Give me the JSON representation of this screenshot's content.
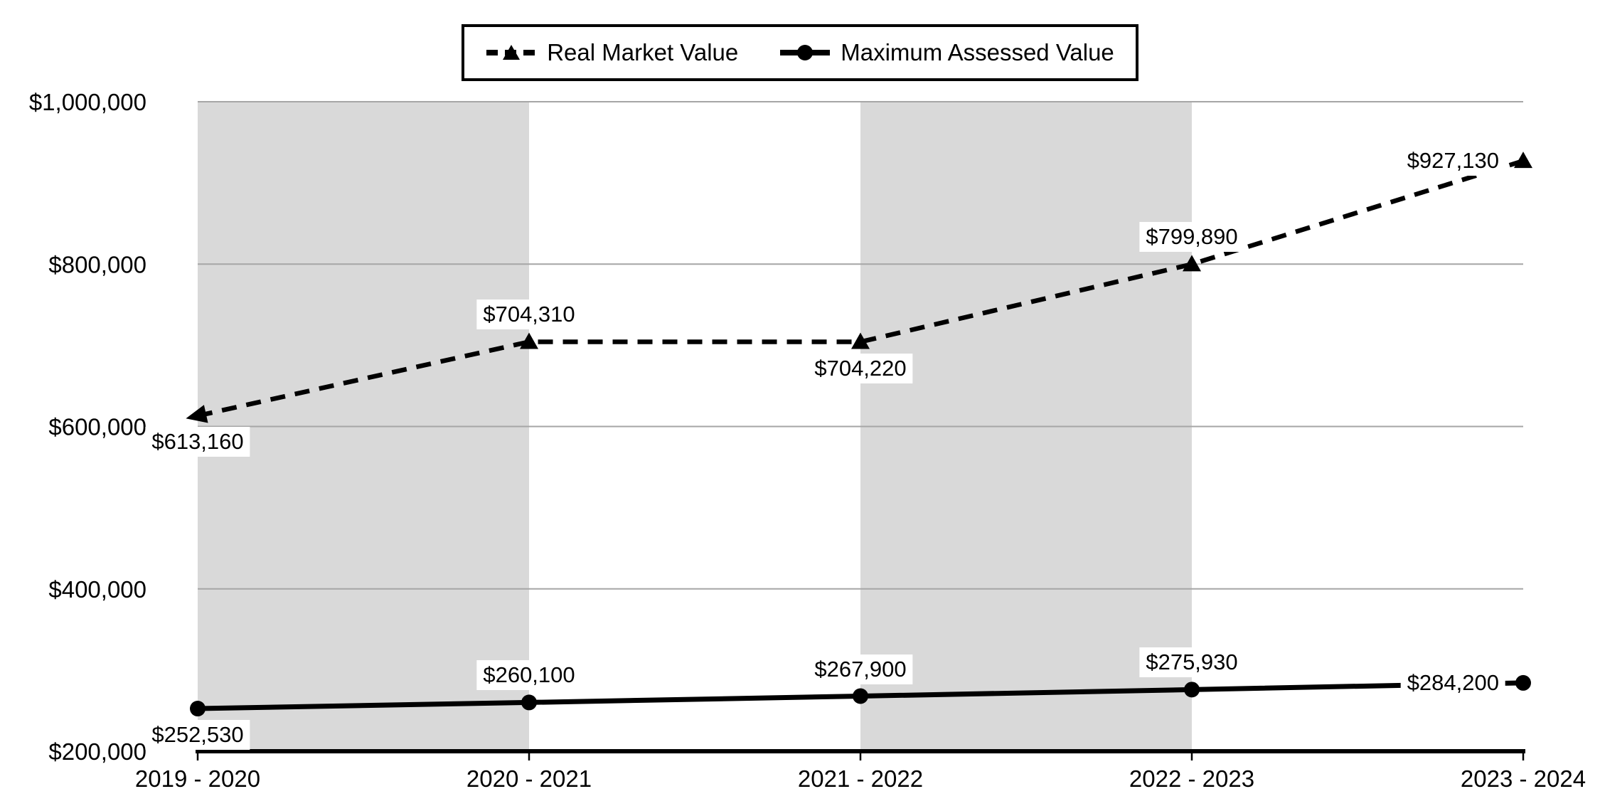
{
  "chart_data": {
    "type": "line",
    "title": "",
    "xlabel": "",
    "ylabel": "",
    "categories": [
      "2019 - 2020",
      "2020 - 2021",
      "2021 - 2022",
      "2022 - 2023",
      "2023 - 2024"
    ],
    "ylim": [
      200000,
      1000000
    ],
    "grid": true,
    "legend_position": "top-center",
    "y_ticks": [
      {
        "label": "$1,000,000",
        "value": 1000000
      },
      {
        "label": "$800,000",
        "value": 800000
      },
      {
        "label": "$600,000",
        "value": 600000
      },
      {
        "label": "$400,000",
        "value": 400000
      },
      {
        "label": "$200,000",
        "value": 200000
      }
    ],
    "band_indices": [
      0,
      2
    ],
    "series": [
      {
        "name": "Real Market Value",
        "style": "dashed",
        "marker": "triangle",
        "markers": [
          "arrow",
          "triangle",
          "triangle",
          "triangle",
          "triangle"
        ],
        "values": [
          613160,
          704310,
          704220,
          799890,
          927130
        ],
        "labels": [
          "$613,160",
          "$704,310",
          "$704,220",
          "$799,890",
          "$927,130"
        ],
        "label_pos": [
          "below",
          "above",
          "below",
          "above",
          "left"
        ]
      },
      {
        "name": "Maximum Assessed Value",
        "style": "solid",
        "marker": "circle",
        "markers": [
          "circle",
          "circle",
          "circle",
          "circle",
          "circle"
        ],
        "values": [
          252530,
          260100,
          267900,
          275930,
          284200
        ],
        "labels": [
          "$252,530",
          "$260,100",
          "$267,900",
          "$275,930",
          "$284,200"
        ],
        "label_pos": [
          "below",
          "above",
          "above",
          "above",
          "left"
        ]
      }
    ],
    "colors": {
      "band": "#d9d9d9",
      "gridline": "#a6a6a6",
      "axis": "#000000",
      "series": "#000000",
      "background": "#ffffff"
    }
  }
}
